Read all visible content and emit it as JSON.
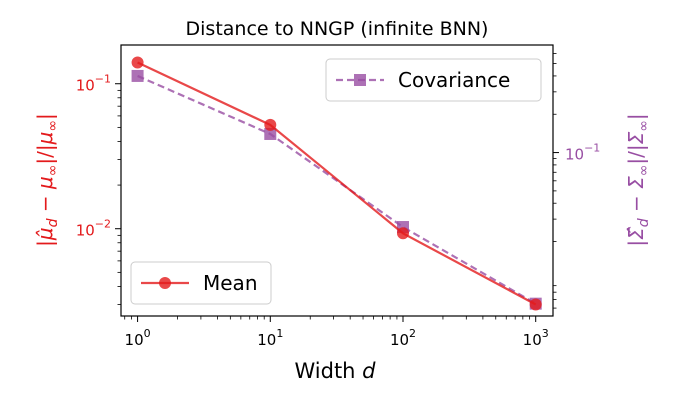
{
  "chart_data": {
    "type": "line",
    "title": "Distance to NNGP (infinite BNN)",
    "xlabel": "Width d",
    "xscale": "log",
    "xlim": [
      0.75,
      1350
    ],
    "x": [
      1,
      10,
      100,
      1000
    ],
    "x_ticks": [
      {
        "value": 1,
        "base": "10",
        "exp": "0"
      },
      {
        "value": 10,
        "base": "10",
        "exp": "1"
      },
      {
        "value": 100,
        "base": "10",
        "exp": "2"
      },
      {
        "value": 1000,
        "base": "10",
        "exp": "3"
      }
    ],
    "left_axis": {
      "label": "|μ̂d − μ∞|/|μ∞|",
      "scale": "log",
      "ylim": [
        0.0025,
        0.185
      ],
      "color": "#e31a1c",
      "ticks": [
        {
          "value": 0.1,
          "base": "10",
          "exp": "−1"
        },
        {
          "value": 0.01,
          "base": "10",
          "exp": "−2"
        }
      ]
    },
    "right_axis": {
      "label": "|Σ̂d − Σ∞|/|Σ∞|",
      "scale": "log",
      "ylim": [
        0.0052,
        0.7
      ],
      "color": "#984ea3",
      "ticks": [
        {
          "value": 0.1,
          "base": "10",
          "exp": "−1"
        }
      ]
    },
    "series": [
      {
        "name": "Mean",
        "axis": "left",
        "marker": "circle",
        "linestyle": "solid",
        "color": "#e41a1c",
        "values": [
          0.14,
          0.052,
          0.0093,
          0.003
        ]
      },
      {
        "name": "Covariance",
        "axis": "right",
        "marker": "square",
        "linestyle": "dashed",
        "color": "#984ea3",
        "values": [
          0.4,
          0.14,
          0.026,
          0.0065
        ]
      }
    ],
    "legends": [
      {
        "series": "Covariance",
        "position": "upper-right"
      },
      {
        "series": "Mean",
        "position": "lower-left"
      }
    ],
    "grid": false
  }
}
